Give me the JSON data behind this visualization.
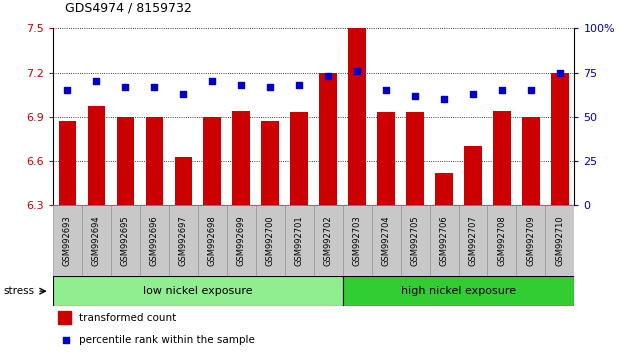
{
  "title": "GDS4974 / 8159732",
  "categories": [
    "GSM992693",
    "GSM992694",
    "GSM992695",
    "GSM992696",
    "GSM992697",
    "GSM992698",
    "GSM992699",
    "GSM992700",
    "GSM992701",
    "GSM992702",
    "GSM992703",
    "GSM992704",
    "GSM992705",
    "GSM992706",
    "GSM992707",
    "GSM992708",
    "GSM992709",
    "GSM992710"
  ],
  "bar_values": [
    6.87,
    6.97,
    6.9,
    6.9,
    6.63,
    6.9,
    6.94,
    6.87,
    6.93,
    7.2,
    7.5,
    6.93,
    6.93,
    6.52,
    6.7,
    6.94,
    6.9,
    7.2
  ],
  "percentile_values": [
    65,
    70,
    67,
    67,
    63,
    70,
    68,
    67,
    68,
    73,
    76,
    65,
    62,
    60,
    63,
    65,
    65,
    75
  ],
  "ylim_left": [
    6.3,
    7.5
  ],
  "ylim_right": [
    0,
    100
  ],
  "bar_color": "#cc0000",
  "dot_color": "#0000cc",
  "group1_label": "low nickel exposure",
  "group2_label": "high nickel exposure",
  "group1_count": 10,
  "group2_count": 8,
  "group1_color": "#90ee90",
  "group2_color": "#32cd32",
  "stress_label": "stress",
  "legend1": "transformed count",
  "legend2": "percentile rank within the sample",
  "yticks_left": [
    6.3,
    6.6,
    6.9,
    7.2,
    7.5
  ],
  "yticks_right": [
    0,
    25,
    50,
    75,
    100
  ],
  "ytick_labels_right": [
    "0",
    "25",
    "50",
    "75",
    "100%"
  ]
}
